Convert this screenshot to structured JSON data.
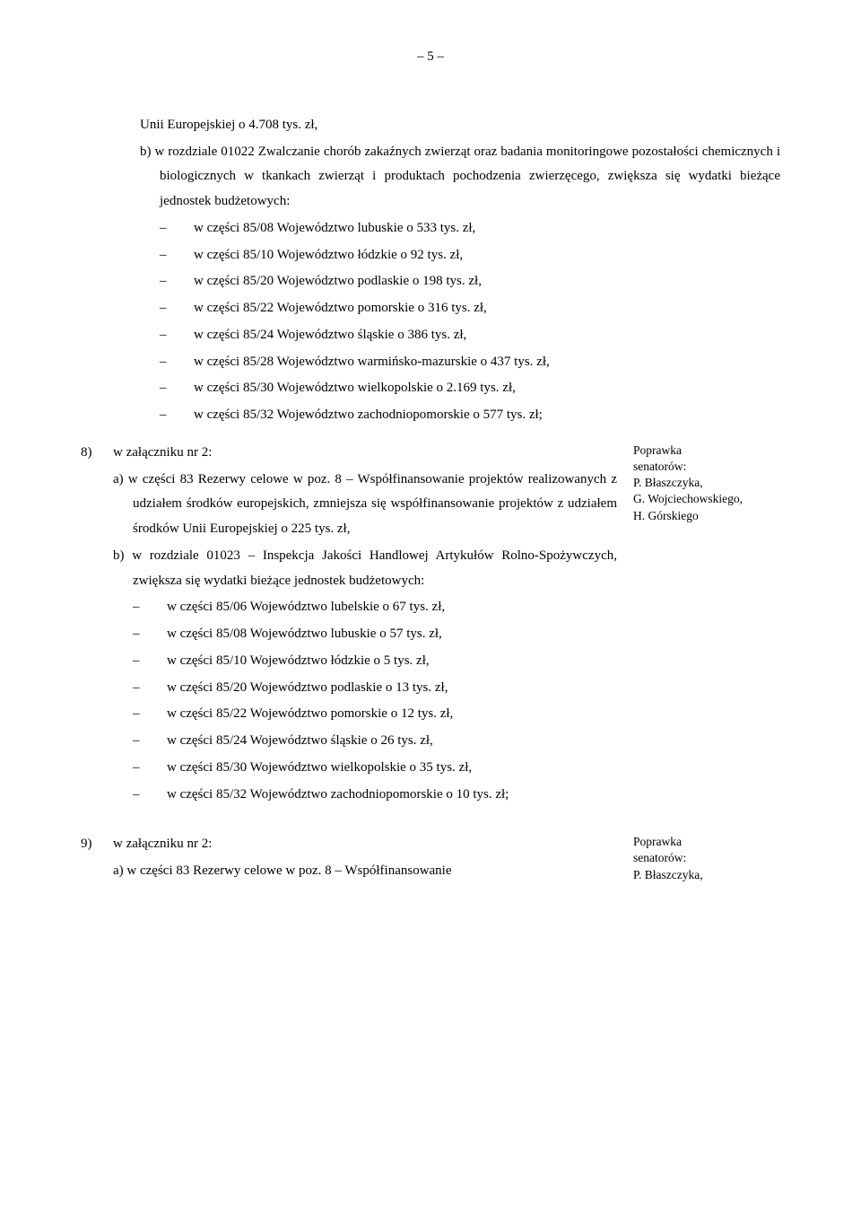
{
  "pageNumber": "– 5 –",
  "continuation": "Unii Europejskiej o 4.708 tys. zł,",
  "subB": "b) w rozdziale 01022 Zwalczanie chorób zakaźnych zwierząt oraz badania monitoringowe pozostałości chemicznych i biologicznych w tkankach zwierząt i produktach pochodzenia zwierzęcego, zwiększa się wydatki bieżące jednostek budżetowych:",
  "bulletsTop": [
    "w części 85/08 Województwo lubuskie o 533 tys. zł,",
    "w części 85/10 Województwo łódzkie o 92 tys. zł,",
    "w części 85/20 Województwo podlaskie o 198 tys. zł,",
    "w części 85/22 Województwo pomorskie o 316 tys. zł,",
    "w części 85/24 Województwo śląskie o 386 tys. zł,",
    "w części 85/28 Województwo warmińsko-mazurskie o 437 tys. zł,",
    "w części 85/30 Województwo wielkopolskie o 2.169 tys. zł,",
    "w części 85/32 Województwo zachodniopomorskie o 577 tys. zł;"
  ],
  "item8": {
    "num": "8)",
    "attach": "w załączniku nr 2:",
    "a": "a) w części 83 Rezerwy celowe w poz. 8 – Współfinansowanie projektów realizowanych z udziałem środków europejskich, zmniejsza się współfinansowanie projektów z udziałem środków Unii Europejskiej o 225 tys. zł,",
    "b": "b) w rozdziale 01023 – Inspekcja Jakości Handlowej Artykułów Rolno-Spożywczych, zwiększa się wydatki bieżące jednostek budżetowych:",
    "bullets": [
      "w części 85/06 Województwo lubelskie o 67 tys. zł,",
      "w części 85/08 Województwo lubuskie o 57 tys. zł,",
      "w części 85/10 Województwo łódzkie o 5 tys. zł,",
      "w części 85/20 Województwo podlaskie o 13 tys. zł,",
      "w części 85/22 Województwo pomorskie o 12 tys. zł,",
      "w części 85/24 Województwo śląskie o 26 tys. zł,",
      "w części 85/30 Województwo wielkopolskie o 35 tys. zł,",
      "w części 85/32 Województwo zachodniopomorskie o 10 tys. zł;"
    ],
    "sidebar": [
      "Poprawka",
      "senatorów:",
      "P. Błaszczyka,",
      "G. Wojciechowskiego,",
      "H. Górskiego"
    ]
  },
  "item9": {
    "num": "9)",
    "attach": "w załączniku nr 2:",
    "a": "a) w części 83 Rezerwy celowe w poz. 8 – Współfinansowanie",
    "sidebar": [
      "Poprawka",
      "senatorów:",
      "P. Błaszczyka,"
    ]
  }
}
